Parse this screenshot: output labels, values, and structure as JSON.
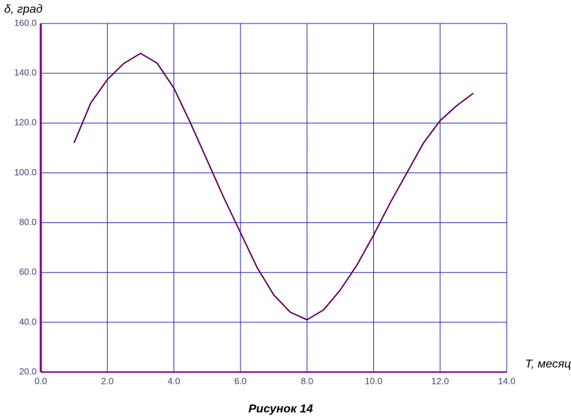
{
  "chart_data": {
    "type": "line",
    "x_label": "T, месяц",
    "y_label": "δ, град",
    "caption": "Рисунок 14",
    "x": [
      1,
      1.5,
      2,
      2.5,
      3,
      3.5,
      4,
      4.5,
      5,
      5.5,
      6,
      6.5,
      7,
      7.5,
      8,
      8.5,
      9,
      9.5,
      10,
      10.5,
      11,
      11.5,
      12,
      12.5,
      13
    ],
    "values": [
      112,
      128,
      137.5,
      144,
      148,
      144,
      134,
      120,
      105,
      90,
      76,
      62,
      51,
      44,
      41,
      45,
      53,
      63,
      75,
      88,
      100,
      112,
      121,
      127,
      132
    ],
    "color": "#600060",
    "xlim": [
      0,
      14
    ],
    "ylim": [
      20,
      160
    ],
    "xticks": [
      {
        "value": 0,
        "label": "0.0"
      },
      {
        "value": 2,
        "label": "2.0"
      },
      {
        "value": 4,
        "label": "4.0"
      },
      {
        "value": 6,
        "label": "6.0"
      },
      {
        "value": 8,
        "label": "8.0"
      },
      {
        "value": 10,
        "label": "10.0"
      },
      {
        "value": 12,
        "label": "12.0"
      },
      {
        "value": 14,
        "label": "14.0"
      }
    ],
    "yticks": [
      {
        "value": 20,
        "label": "20.0"
      },
      {
        "value": 40,
        "label": "40.0"
      },
      {
        "value": 60,
        "label": "60.0"
      },
      {
        "value": 80,
        "label": "80.0"
      },
      {
        "value": 100,
        "label": "100.0"
      },
      {
        "value": 120,
        "label": "120.0"
      },
      {
        "value": 140,
        "label": "140.0"
      },
      {
        "value": 160,
        "label": "160.0"
      }
    ],
    "grid": true
  }
}
